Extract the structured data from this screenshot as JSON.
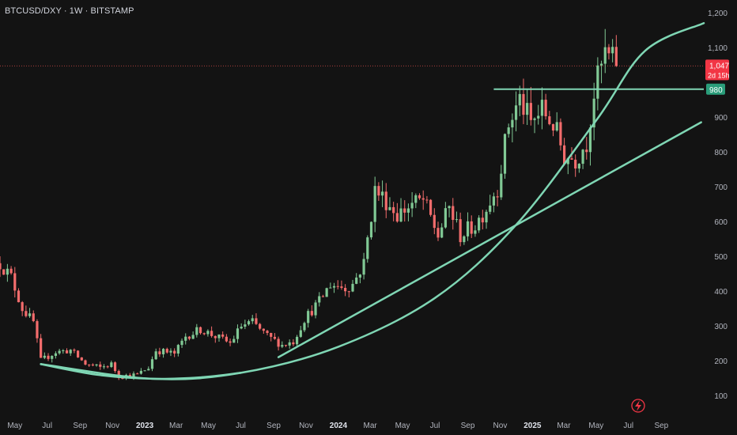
{
  "header": {
    "title": "BTCUSD/DXY · 1W · BITSTAMP"
  },
  "colors": {
    "background": "#131313",
    "up": "#26a69a",
    "down": "#ef5350",
    "up_chart": "#81c995",
    "down_chart": "#f36c6c",
    "trendline": "#7fd6b4",
    "axis_text": "#b2b5be",
    "price_tag_bg": "#f23645",
    "level_tag_bg": "#2a9d7a"
  },
  "price_tags": {
    "last_price": "1,047",
    "countdown": "2d 15h",
    "level": "980"
  },
  "chart_data": {
    "type": "candlestick",
    "title": "BTCUSD/DXY · 1W · BITSTAMP",
    "xlabel": "",
    "ylabel": "",
    "ylim": [
      60,
      1200
    ],
    "y_scale": "linear",
    "y_ticks": [
      100,
      200,
      300,
      400,
      500,
      600,
      700,
      800,
      900,
      1000,
      1100,
      1200
    ],
    "y_tick_labels": [
      "100",
      "200",
      "300",
      "400",
      "500",
      "600",
      "700",
      "800",
      "900",
      "",
      "1,100",
      "1,200"
    ],
    "x_tick_labels": [
      {
        "label": "May",
        "date": "2022-05-01",
        "bold": false
      },
      {
        "label": "Jul",
        "date": "2022-07-01",
        "bold": false
      },
      {
        "label": "Sep",
        "date": "2022-09-01",
        "bold": false
      },
      {
        "label": "Nov",
        "date": "2022-11-01",
        "bold": false
      },
      {
        "label": "2023",
        "date": "2023-01-01",
        "bold": true
      },
      {
        "label": "Mar",
        "date": "2023-03-01",
        "bold": false
      },
      {
        "label": "May",
        "date": "2023-05-01",
        "bold": false
      },
      {
        "label": "Jul",
        "date": "2023-07-01",
        "bold": false
      },
      {
        "label": "Sep",
        "date": "2023-09-01",
        "bold": false
      },
      {
        "label": "Nov",
        "date": "2023-11-01",
        "bold": false
      },
      {
        "label": "2024",
        "date": "2024-01-01",
        "bold": true
      },
      {
        "label": "Mar",
        "date": "2024-03-01",
        "bold": false
      },
      {
        "label": "May",
        "date": "2024-05-01",
        "bold": false
      },
      {
        "label": "Jul",
        "date": "2024-07-01",
        "bold": false
      },
      {
        "label": "Sep",
        "date": "2024-09-01",
        "bold": false
      },
      {
        "label": "Nov",
        "date": "2024-11-01",
        "bold": false
      },
      {
        "label": "2025",
        "date": "2025-01-01",
        "bold": true
      },
      {
        "label": "Mar",
        "date": "2025-03-01",
        "bold": false
      },
      {
        "label": "May",
        "date": "2025-05-01",
        "bold": false
      },
      {
        "label": "Jul",
        "date": "2025-07-01",
        "bold": false
      },
      {
        "label": "Sep",
        "date": "2025-09-01",
        "bold": false
      }
    ],
    "grid": false,
    "last_price": 1047,
    "horizontal_level": 980,
    "close_path": [
      [
        "2022-04-03",
        480
      ],
      [
        "2022-04-24",
        440
      ],
      [
        "2022-05-15",
        350
      ],
      [
        "2022-06-05",
        310
      ],
      [
        "2022-06-19",
        200
      ],
      [
        "2022-07-17",
        225
      ],
      [
        "2022-08-14",
        230
      ],
      [
        "2022-09-11",
        190
      ],
      [
        "2022-10-09",
        180
      ],
      [
        "2022-10-30",
        190
      ],
      [
        "2022-11-13",
        155
      ],
      [
        "2022-12-18",
        160
      ],
      [
        "2023-01-08",
        180
      ],
      [
        "2023-01-22",
        230
      ],
      [
        "2023-02-26",
        220
      ],
      [
        "2023-03-19",
        270
      ],
      [
        "2023-04-16",
        290
      ],
      [
        "2023-05-14",
        270
      ],
      [
        "2023-06-11",
        250
      ],
      [
        "2023-07-02",
        300
      ],
      [
        "2023-07-23",
        310
      ],
      [
        "2023-08-20",
        270
      ],
      [
        "2023-09-17",
        245
      ],
      [
        "2023-10-08",
        255
      ],
      [
        "2023-10-29",
        320
      ],
      [
        "2023-11-26",
        370
      ],
      [
        "2023-12-17",
        420
      ],
      [
        "2024-01-14",
        410
      ],
      [
        "2024-01-28",
        420
      ],
      [
        "2024-02-18",
        480
      ],
      [
        "2024-03-10",
        690
      ],
      [
        "2024-03-31",
        660
      ],
      [
        "2024-04-21",
        620
      ],
      [
        "2024-05-19",
        650
      ],
      [
        "2024-06-09",
        660
      ],
      [
        "2024-07-07",
        560
      ],
      [
        "2024-07-28",
        640
      ],
      [
        "2024-08-18",
        560
      ],
      [
        "2024-09-15",
        590
      ],
      [
        "2024-10-06",
        640
      ],
      [
        "2024-10-27",
        700
      ],
      [
        "2024-11-17",
        880
      ],
      [
        "2024-12-08",
        950
      ],
      [
        "2024-12-29",
        880
      ],
      [
        "2025-01-19",
        920
      ],
      [
        "2025-02-09",
        880
      ],
      [
        "2025-03-02",
        790
      ],
      [
        "2025-03-23",
        780
      ],
      [
        "2025-04-13",
        830
      ],
      [
        "2025-04-27",
        970
      ],
      [
        "2025-05-18",
        1080
      ],
      [
        "2025-06-08",
        1047
      ]
    ],
    "trendlines": [
      {
        "type": "straight",
        "points": [
          [
            "2023-09-10",
            210
          ],
          [
            "2025-11-15",
            885
          ]
        ]
      },
      {
        "type": "curve",
        "points": [
          [
            "2022-06-19",
            190
          ],
          [
            "2023-01-15",
            148
          ],
          [
            "2023-07-01",
            165
          ],
          [
            "2024-01-01",
            240
          ],
          [
            "2024-07-01",
            380
          ],
          [
            "2024-12-01",
            590
          ],
          [
            "2025-05-01",
            890
          ],
          [
            "2025-08-01",
            1090
          ],
          [
            "2025-11-20",
            1170
          ]
        ]
      },
      {
        "type": "curve",
        "points": [
          [
            "2022-06-19",
            190
          ],
          [
            "2022-10-01",
            160
          ],
          [
            "2023-01-15",
            148
          ],
          [
            "2023-04-15",
            152
          ],
          [
            "2023-07-01",
            165
          ]
        ]
      }
    ]
  }
}
